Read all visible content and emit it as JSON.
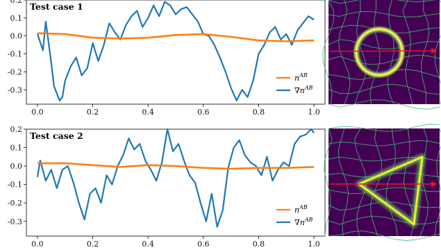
{
  "colors": {
    "n_line": "#ff7f0e",
    "grad_line": "#1f77b4",
    "heatmap_bg": "#440154",
    "ring_glow": "#fde725",
    "grid_line": "#35b779"
  },
  "chart_data": [
    {
      "type": "line",
      "title": "Test case 1",
      "xlim": [
        -0.04,
        1.04
      ],
      "ylim": [
        -0.38,
        0.2
      ],
      "xticks": [
        "0.0",
        "0.2",
        "0.4",
        "0.6",
        "0.8",
        "1.0"
      ],
      "yticks": [
        "0.2",
        "0.1",
        "0.0",
        "-0.1",
        "-0.2",
        "-0.3"
      ],
      "legend": "lower-right",
      "series": [
        {
          "name": "n^{AB}",
          "x": [
            0.0,
            0.1,
            0.2,
            0.3,
            0.4,
            0.5,
            0.6,
            0.7,
            0.8,
            0.9,
            1.0
          ],
          "values": [
            0.015,
            0.01,
            -0.01,
            -0.015,
            -0.01,
            0.005,
            0.01,
            -0.005,
            -0.025,
            -0.03,
            -0.025
          ]
        },
        {
          "name": "∇n^{AB}",
          "x": [
            0.0,
            0.02,
            0.03,
            0.05,
            0.06,
            0.08,
            0.09,
            0.1,
            0.12,
            0.14,
            0.16,
            0.18,
            0.2,
            0.22,
            0.24,
            0.26,
            0.28,
            0.3,
            0.32,
            0.34,
            0.36,
            0.38,
            0.4,
            0.42,
            0.44,
            0.46,
            0.48,
            0.5,
            0.52,
            0.54,
            0.56,
            0.58,
            0.6,
            0.62,
            0.64,
            0.66,
            0.68,
            0.7,
            0.72,
            0.74,
            0.76,
            0.78,
            0.8,
            0.82,
            0.84,
            0.86,
            0.88,
            0.9,
            0.92,
            0.94,
            0.96,
            0.98,
            1.0
          ],
          "values": [
            0.01,
            -0.08,
            0.08,
            -0.15,
            -0.28,
            -0.36,
            -0.34,
            -0.25,
            -0.17,
            -0.12,
            -0.22,
            -0.18,
            -0.04,
            -0.14,
            -0.05,
            0.07,
            0.02,
            -0.02,
            0.06,
            0.11,
            0.14,
            0.05,
            0.1,
            0.17,
            0.11,
            0.19,
            0.17,
            0.12,
            0.15,
            0.16,
            0.12,
            0.08,
            0.01,
            0.0,
            -0.05,
            -0.12,
            -0.2,
            -0.29,
            -0.36,
            -0.3,
            -0.34,
            -0.25,
            -0.1,
            -0.05,
            0.02,
            0.05,
            -0.02,
            0.01,
            -0.05,
            0.03,
            0.07,
            0.11,
            0.09
          ]
        }
      ]
    },
    {
      "type": "line",
      "title": "Test case 2",
      "xlim": [
        -0.04,
        1.04
      ],
      "ylim": [
        -0.38,
        0.2
      ],
      "xticks": [
        "0.0",
        "0.2",
        "0.4",
        "0.6",
        "0.8",
        "1.0"
      ],
      "yticks": [
        "0.2",
        "0.1",
        "0.0",
        "-0.1",
        "-0.2",
        "-0.3"
      ],
      "legend": "lower-right",
      "series": [
        {
          "name": "n^{AB}",
          "x": [
            0.0,
            0.1,
            0.2,
            0.3,
            0.4,
            0.5,
            0.6,
            0.7,
            0.8,
            0.9,
            1.0
          ],
          "values": [
            0.015,
            0.015,
            0.005,
            -0.005,
            0.005,
            0.0,
            -0.01,
            -0.015,
            -0.01,
            -0.01,
            -0.005
          ]
        },
        {
          "name": "∇n^{AB}",
          "x": [
            0.0,
            0.01,
            0.03,
            0.05,
            0.07,
            0.09,
            0.11,
            0.13,
            0.15,
            0.17,
            0.19,
            0.21,
            0.23,
            0.25,
            0.27,
            0.29,
            0.31,
            0.33,
            0.35,
            0.37,
            0.39,
            0.41,
            0.43,
            0.45,
            0.47,
            0.49,
            0.51,
            0.53,
            0.55,
            0.57,
            0.59,
            0.61,
            0.63,
            0.65,
            0.67,
            0.69,
            0.71,
            0.73,
            0.75,
            0.77,
            0.79,
            0.81,
            0.83,
            0.85,
            0.87,
            0.89,
            0.91,
            0.93,
            0.95,
            0.97,
            0.99,
            1.0
          ],
          "values": [
            -0.06,
            0.03,
            -0.08,
            -0.02,
            -0.12,
            -0.02,
            0.0,
            -0.09,
            -0.2,
            -0.29,
            -0.15,
            -0.12,
            -0.2,
            -0.05,
            -0.1,
            0.0,
            0.06,
            0.15,
            0.09,
            0.12,
            0.03,
            -0.02,
            -0.08,
            0.02,
            0.2,
            0.08,
            0.12,
            0.03,
            -0.05,
            -0.09,
            -0.2,
            -0.3,
            -0.15,
            -0.33,
            -0.24,
            -0.01,
            0.1,
            0.14,
            0.06,
            0.02,
            0.0,
            -0.05,
            0.05,
            -0.08,
            -0.02,
            0.02,
            0.0,
            0.12,
            0.16,
            0.17,
            0.2,
            0.18
          ]
        }
      ]
    }
  ]
}
